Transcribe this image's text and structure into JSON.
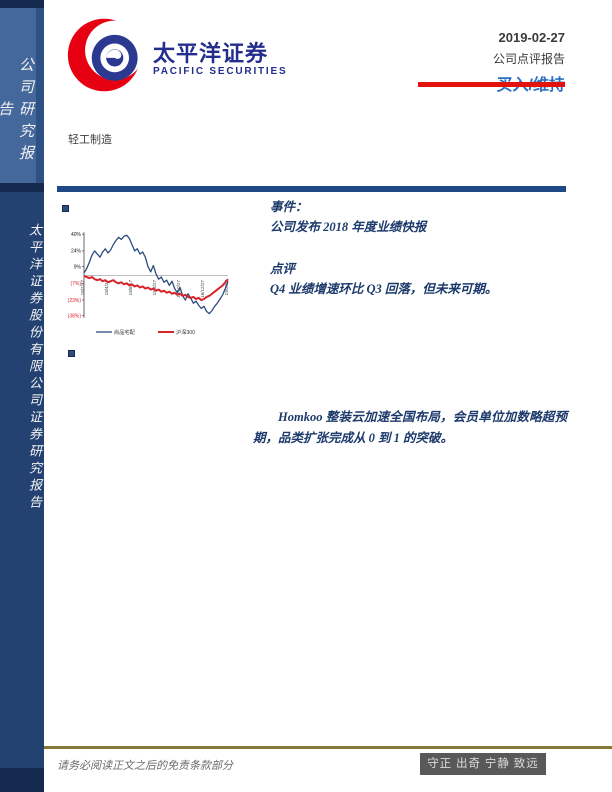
{
  "brand": {
    "name_cn": "太平洋证券",
    "name_en": "PACIFIC SECURITIES"
  },
  "sidebar": {
    "top_label": "公司研究报告",
    "bottom_label": "太平洋证券股份有限公司证券研究报告"
  },
  "meta": {
    "date": "2019-02-27",
    "report_type": "公司点评报告",
    "rating": "买入/维持"
  },
  "industry": {
    "label": "轻工制造"
  },
  "body": {
    "event_title": "事件：",
    "event_text": "公司发布 2018 年度业绩快报",
    "comment_title": "点评",
    "comment_text": "Q4 业绩增速环比 Q3 回落，但未来可期。",
    "paragraph": "Homkoo 整装云加速全国布局，会员单位加数略超预期，品类扩张完成从 0 到 1 的突破。"
  },
  "chart_data": {
    "type": "line",
    "title": "",
    "xlabel": "",
    "ylabel": "",
    "ylim": [
      -44,
      44
    ],
    "grid": "zero-line-only",
    "legend_position": "bottom",
    "y_ticks": [
      {
        "label": "40%",
        "value": 40,
        "color": "#1a1a1a"
      },
      {
        "label": "24%",
        "value": 24,
        "color": "#1a1a1a"
      },
      {
        "label": "9%",
        "value": 9,
        "color": "#1a1a1a"
      },
      {
        "label": "(7%)",
        "value": -7,
        "color": "#d8232a"
      },
      {
        "label": "(23%)",
        "value": -23,
        "color": "#d8232a"
      },
      {
        "label": "(38%)",
        "value": -38,
        "color": "#d8232a"
      }
    ],
    "x_labels": [
      "18/2/27",
      "18/4/27",
      "18/6/27",
      "18/8/27",
      "18/10/27",
      "18/12/27",
      "19/2/27"
    ],
    "series": [
      {
        "name": "尚品宅配",
        "color": "#2b4d7e",
        "width": 1.3,
        "values": [
          3,
          7,
          13,
          20,
          24,
          21,
          18,
          23,
          26,
          22,
          25,
          30,
          34,
          37,
          35,
          38,
          39,
          36,
          30,
          24,
          26,
          21,
          23,
          18,
          9,
          4,
          10,
          2,
          -3,
          -1,
          -6,
          -4,
          -9,
          -5,
          -12,
          -16,
          -11,
          -19,
          -23,
          -17,
          -21,
          -26,
          -24,
          -28,
          -31,
          -29,
          -34,
          -36,
          -33,
          -29,
          -26,
          -22,
          -18,
          -12,
          -5
        ]
      },
      {
        "name": "沪深300",
        "color": "#d8232a",
        "width": 2.0,
        "values": [
          0,
          -1,
          -2,
          -1,
          -3,
          -4,
          -3,
          -5,
          -4,
          -6,
          -5,
          -4,
          -6,
          -7,
          -6,
          -8,
          -7,
          -9,
          -8,
          -10,
          -9,
          -11,
          -10,
          -12,
          -11,
          -13,
          -12,
          -14,
          -13,
          -15,
          -14,
          -16,
          -15,
          -17,
          -16,
          -18,
          -17,
          -19,
          -18,
          -20,
          -21,
          -20,
          -22,
          -21,
          -23,
          -22,
          -20,
          -19,
          -17,
          -15,
          -13,
          -11,
          -9,
          -6,
          -3
        ]
      }
    ]
  },
  "footer": {
    "disclaimer": "请务必阅读正文之后的免责条款部分",
    "slogan": "守正 出奇 宁静 致远"
  },
  "colors": {
    "sidebar_top": "#44689c",
    "sidebar_bottom": "#234272",
    "sidebar_cap": "#15294e",
    "divider_blue": "#1d4a86",
    "rating_blue": "#2b6fc2",
    "accent_red": "#e3120b",
    "brand_blue": "#232d8d",
    "brand_red": "#e60012",
    "body_navy": "#1c3a6b",
    "footer_olive": "#877a38",
    "slogan_bg": "#595959"
  }
}
